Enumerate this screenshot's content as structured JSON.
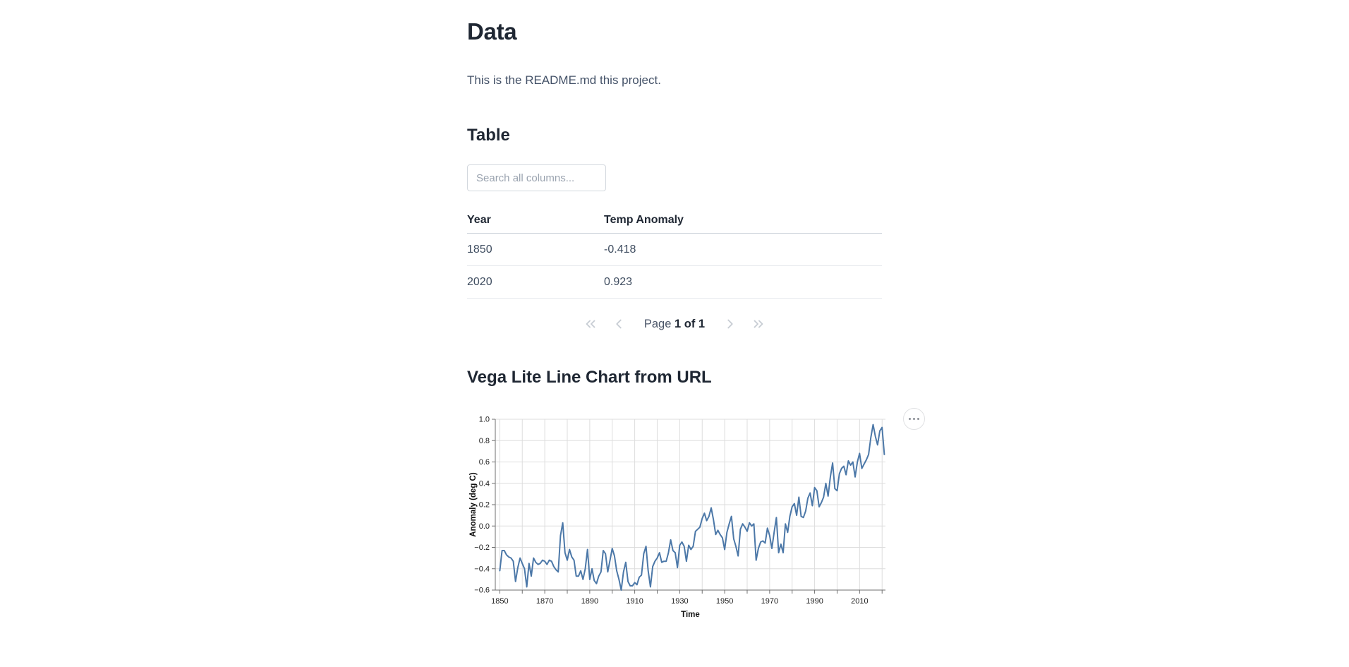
{
  "page": {
    "title": "Data",
    "readme": "This is the README.md this project."
  },
  "colors": {
    "heading": "#1f2733",
    "body_text": "#445268",
    "table_text": "#3f4d60",
    "placeholder": "#9aa3af",
    "header_border": "#ccd3da",
    "row_border": "#e6e9ed",
    "pagination_icon": "#c8cdd4",
    "grid": "#dddddd",
    "axis": "#6f6f6f",
    "line": "#4c78a8"
  },
  "table_section": {
    "heading": "Table",
    "search": {
      "placeholder": "Search all columns...",
      "value": ""
    },
    "columns": [
      "Year",
      "Temp Anomaly"
    ],
    "rows": [
      [
        "1850",
        "-0.418"
      ],
      [
        "2020",
        "0.923"
      ]
    ],
    "pagination": {
      "page_label": "Page",
      "page_status": "1 of 1",
      "icons": [
        "chevrons-left",
        "chevron-left",
        "chevron-right",
        "chevrons-right"
      ]
    }
  },
  "chart_section": {
    "heading": "Vega Lite Line Chart from URL",
    "actions_icon": "ellipsis"
  },
  "chart_data": {
    "type": "line",
    "title": "",
    "xlabel": "Time",
    "ylabel": "Anomaly (deg C)",
    "x_domain": [
      1848,
      2021.5
    ],
    "ylim": [
      -0.6,
      1.0
    ],
    "x_tick_start": 1850,
    "x_tick_end": 2020,
    "x_tick_step": 10,
    "x_label_ticks": [
      1850,
      1870,
      1890,
      1910,
      1930,
      1950,
      1970,
      1990,
      2010
    ],
    "y_ticks": [
      -0.6,
      -0.4,
      -0.2,
      0,
      0.2,
      0.4,
      0.6,
      0.8,
      1.0
    ],
    "grid": true,
    "legend": "none",
    "line_color": "#4c78a8",
    "series": [
      {
        "name": "Temp Anomaly",
        "points": [
          [
            1850,
            -0.418
          ],
          [
            1851,
            -0.23
          ],
          [
            1852,
            -0.23
          ],
          [
            1853,
            -0.27
          ],
          [
            1854,
            -0.29
          ],
          [
            1855,
            -0.3
          ],
          [
            1856,
            -0.33
          ],
          [
            1857,
            -0.52
          ],
          [
            1858,
            -0.39
          ],
          [
            1859,
            -0.3
          ],
          [
            1860,
            -0.35
          ],
          [
            1861,
            -0.4
          ],
          [
            1862,
            -0.57
          ],
          [
            1863,
            -0.35
          ],
          [
            1864,
            -0.47
          ],
          [
            1865,
            -0.3
          ],
          [
            1866,
            -0.34
          ],
          [
            1867,
            -0.36
          ],
          [
            1868,
            -0.35
          ],
          [
            1869,
            -0.32
          ],
          [
            1870,
            -0.33
          ],
          [
            1871,
            -0.36
          ],
          [
            1872,
            -0.32
          ],
          [
            1873,
            -0.33
          ],
          [
            1874,
            -0.38
          ],
          [
            1875,
            -0.41
          ],
          [
            1876,
            -0.43
          ],
          [
            1877,
            -0.09
          ],
          [
            1878,
            0.03
          ],
          [
            1879,
            -0.25
          ],
          [
            1880,
            -0.32
          ],
          [
            1881,
            -0.22
          ],
          [
            1882,
            -0.29
          ],
          [
            1883,
            -0.32
          ],
          [
            1884,
            -0.47
          ],
          [
            1885,
            -0.47
          ],
          [
            1886,
            -0.42
          ],
          [
            1887,
            -0.5
          ],
          [
            1888,
            -0.4
          ],
          [
            1889,
            -0.22
          ],
          [
            1890,
            -0.5
          ],
          [
            1891,
            -0.4
          ],
          [
            1892,
            -0.51
          ],
          [
            1893,
            -0.54
          ],
          [
            1894,
            -0.47
          ],
          [
            1895,
            -0.43
          ],
          [
            1896,
            -0.23
          ],
          [
            1897,
            -0.26
          ],
          [
            1898,
            -0.43
          ],
          [
            1899,
            -0.32
          ],
          [
            1900,
            -0.21
          ],
          [
            1901,
            -0.28
          ],
          [
            1902,
            -0.42
          ],
          [
            1903,
            -0.5
          ],
          [
            1904,
            -0.6
          ],
          [
            1905,
            -0.43
          ],
          [
            1906,
            -0.34
          ],
          [
            1907,
            -0.52
          ],
          [
            1908,
            -0.56
          ],
          [
            1909,
            -0.56
          ],
          [
            1910,
            -0.53
          ],
          [
            1911,
            -0.55
          ],
          [
            1912,
            -0.48
          ],
          [
            1913,
            -0.46
          ],
          [
            1914,
            -0.26
          ],
          [
            1915,
            -0.19
          ],
          [
            1916,
            -0.42
          ],
          [
            1917,
            -0.57
          ],
          [
            1918,
            -0.38
          ],
          [
            1919,
            -0.33
          ],
          [
            1920,
            -0.3
          ],
          [
            1921,
            -0.25
          ],
          [
            1922,
            -0.34
          ],
          [
            1923,
            -0.33
          ],
          [
            1924,
            -0.33
          ],
          [
            1925,
            -0.25
          ],
          [
            1926,
            -0.13
          ],
          [
            1927,
            -0.23
          ],
          [
            1928,
            -0.25
          ],
          [
            1929,
            -0.39
          ],
          [
            1930,
            -0.18
          ],
          [
            1931,
            -0.15
          ],
          [
            1932,
            -0.19
          ],
          [
            1933,
            -0.33
          ],
          [
            1934,
            -0.18
          ],
          [
            1935,
            -0.22
          ],
          [
            1936,
            -0.19
          ],
          [
            1937,
            -0.05
          ],
          [
            1938,
            -0.03
          ],
          [
            1939,
            -0.01
          ],
          [
            1940,
            0.07
          ],
          [
            1941,
            0.12
          ],
          [
            1942,
            0.05
          ],
          [
            1943,
            0.09
          ],
          [
            1944,
            0.17
          ],
          [
            1945,
            0.06
          ],
          [
            1946,
            -0.08
          ],
          [
            1947,
            -0.04
          ],
          [
            1948,
            -0.08
          ],
          [
            1949,
            -0.11
          ],
          [
            1950,
            -0.22
          ],
          [
            1951,
            -0.06
          ],
          [
            1952,
            0.02
          ],
          [
            1953,
            0.09
          ],
          [
            1954,
            -0.12
          ],
          [
            1955,
            -0.19
          ],
          [
            1956,
            -0.28
          ],
          [
            1957,
            -0.03
          ],
          [
            1958,
            0.02
          ],
          [
            1959,
            -0.01
          ],
          [
            1960,
            -0.05
          ],
          [
            1961,
            0.03
          ],
          [
            1962,
            0.0
          ],
          [
            1963,
            0.02
          ],
          [
            1964,
            -0.32
          ],
          [
            1965,
            -0.21
          ],
          [
            1966,
            -0.15
          ],
          [
            1967,
            -0.14
          ],
          [
            1968,
            -0.16
          ],
          [
            1969,
            -0.02
          ],
          [
            1970,
            -0.09
          ],
          [
            1971,
            -0.21
          ],
          [
            1972,
            -0.06
          ],
          [
            1973,
            0.08
          ],
          [
            1974,
            -0.25
          ],
          [
            1975,
            -0.17
          ],
          [
            1976,
            -0.25
          ],
          [
            1977,
            0.02
          ],
          [
            1978,
            -0.06
          ],
          [
            1979,
            0.09
          ],
          [
            1980,
            0.18
          ],
          [
            1981,
            0.21
          ],
          [
            1982,
            0.1
          ],
          [
            1983,
            0.27
          ],
          [
            1984,
            0.09
          ],
          [
            1985,
            0.08
          ],
          [
            1986,
            0.14
          ],
          [
            1987,
            0.26
          ],
          [
            1988,
            0.31
          ],
          [
            1989,
            0.19
          ],
          [
            1990,
            0.36
          ],
          [
            1991,
            0.33
          ],
          [
            1992,
            0.18
          ],
          [
            1993,
            0.22
          ],
          [
            1994,
            0.27
          ],
          [
            1995,
            0.4
          ],
          [
            1996,
            0.28
          ],
          [
            1997,
            0.46
          ],
          [
            1998,
            0.59
          ],
          [
            1999,
            0.35
          ],
          [
            2000,
            0.33
          ],
          [
            2001,
            0.49
          ],
          [
            2002,
            0.54
          ],
          [
            2003,
            0.56
          ],
          [
            2004,
            0.48
          ],
          [
            2005,
            0.61
          ],
          [
            2006,
            0.57
          ],
          [
            2007,
            0.6
          ],
          [
            2008,
            0.46
          ],
          [
            2009,
            0.6
          ],
          [
            2010,
            0.68
          ],
          [
            2011,
            0.54
          ],
          [
            2012,
            0.58
          ],
          [
            2013,
            0.62
          ],
          [
            2014,
            0.67
          ],
          [
            2015,
            0.83
          ],
          [
            2016,
            0.95
          ],
          [
            2017,
            0.84
          ],
          [
            2018,
            0.76
          ],
          [
            2019,
            0.89
          ],
          [
            2020,
            0.923
          ],
          [
            2021,
            0.67
          ]
        ]
      }
    ]
  }
}
